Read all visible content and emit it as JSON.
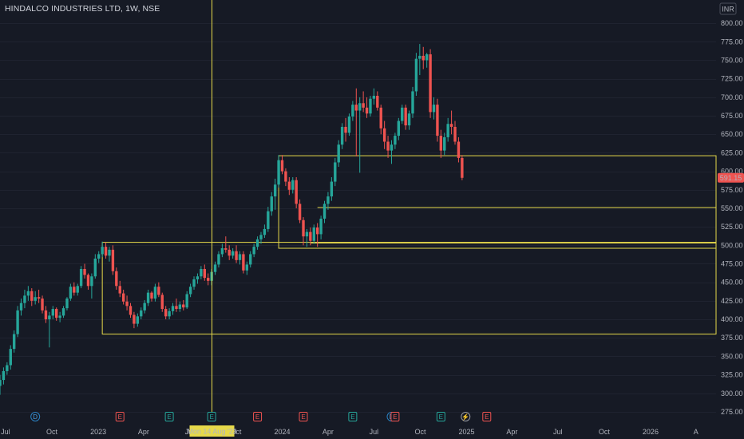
{
  "symbol": {
    "title": "HINDALCO INDUSTRIES LTD, 1W, NSE"
  },
  "currency": "INR",
  "crosshair": {
    "date_label": "Mon 14 Aug '23"
  },
  "last_price": {
    "label": "591.15",
    "value": 591.15
  },
  "colors": {
    "up": "#26a69a",
    "down": "#ef5350",
    "zone": "#e6d94a",
    "background": "#161a25",
    "grid": "#1f2330",
    "crosshair": "#e6d94a"
  },
  "chart_data": {
    "type": "candlestick",
    "title": "HINDALCO INDUSTRIES LTD, 1W, NSE",
    "y_axis": {
      "ticks": [
        275,
        300,
        325,
        350,
        375,
        400,
        425,
        450,
        475,
        500,
        525,
        550,
        575,
        600,
        625,
        650,
        675,
        700,
        725,
        750,
        775,
        800
      ],
      "range": [
        262,
        812
      ]
    },
    "x_axis": {
      "labels": [
        "Jul",
        "Oct",
        "2023",
        "Apr",
        "Jul",
        "Oct",
        "2024",
        "Apr",
        "Jul",
        "Oct",
        "2025",
        "Apr",
        "Jul",
        "Oct",
        "2026",
        "A"
      ],
      "range": [
        "2022-06-20",
        "2026-05-11"
      ]
    },
    "candles": [
      {
        "t": "2022-06-20",
        "o": 310,
        "h": 325,
        "l": 298,
        "c": 318
      },
      {
        "t": "2022-06-27",
        "o": 318,
        "h": 335,
        "l": 312,
        "c": 330
      },
      {
        "t": "2022-07-04",
        "o": 330,
        "h": 342,
        "l": 325,
        "c": 338
      },
      {
        "t": "2022-07-11",
        "o": 338,
        "h": 365,
        "l": 332,
        "c": 360
      },
      {
        "t": "2022-07-18",
        "o": 360,
        "h": 385,
        "l": 355,
        "c": 380
      },
      {
        "t": "2022-07-25",
        "o": 380,
        "h": 418,
        "l": 376,
        "c": 412
      },
      {
        "t": "2022-08-01",
        "o": 412,
        "h": 428,
        "l": 405,
        "c": 422
      },
      {
        "t": "2022-08-08",
        "o": 422,
        "h": 440,
        "l": 415,
        "c": 432
      },
      {
        "t": "2022-08-15",
        "o": 432,
        "h": 445,
        "l": 425,
        "c": 438
      },
      {
        "t": "2022-08-22",
        "o": 438,
        "h": 442,
        "l": 418,
        "c": 425
      },
      {
        "t": "2022-08-29",
        "o": 425,
        "h": 438,
        "l": 420,
        "c": 430
      },
      {
        "t": "2022-09-05",
        "o": 430,
        "h": 440,
        "l": 422,
        "c": 428
      },
      {
        "t": "2022-09-12",
        "o": 428,
        "h": 432,
        "l": 408,
        "c": 412
      },
      {
        "t": "2022-09-19",
        "o": 412,
        "h": 418,
        "l": 395,
        "c": 400
      },
      {
        "t": "2022-09-26",
        "o": 400,
        "h": 410,
        "l": 362,
        "c": 405
      },
      {
        "t": "2022-10-03",
        "o": 405,
        "h": 418,
        "l": 400,
        "c": 414
      },
      {
        "t": "2022-10-10",
        "o": 414,
        "h": 416,
        "l": 398,
        "c": 402
      },
      {
        "t": "2022-10-17",
        "o": 402,
        "h": 410,
        "l": 396,
        "c": 405
      },
      {
        "t": "2022-10-24",
        "o": 405,
        "h": 418,
        "l": 402,
        "c": 415
      },
      {
        "t": "2022-10-31",
        "o": 415,
        "h": 430,
        "l": 412,
        "c": 428
      },
      {
        "t": "2022-11-07",
        "o": 428,
        "h": 448,
        "l": 425,
        "c": 444
      },
      {
        "t": "2022-11-14",
        "o": 444,
        "h": 450,
        "l": 432,
        "c": 436
      },
      {
        "t": "2022-11-21",
        "o": 436,
        "h": 448,
        "l": 432,
        "c": 445
      },
      {
        "t": "2022-11-28",
        "o": 445,
        "h": 472,
        "l": 442,
        "c": 468
      },
      {
        "t": "2022-12-05",
        "o": 468,
        "h": 475,
        "l": 455,
        "c": 460
      },
      {
        "t": "2022-12-12",
        "o": 460,
        "h": 462,
        "l": 440,
        "c": 445
      },
      {
        "t": "2022-12-19",
        "o": 445,
        "h": 462,
        "l": 428,
        "c": 458
      },
      {
        "t": "2022-12-26",
        "o": 458,
        "h": 488,
        "l": 455,
        "c": 482
      },
      {
        "t": "2023-01-02",
        "o": 482,
        "h": 492,
        "l": 476,
        "c": 488
      },
      {
        "t": "2023-01-09",
        "o": 488,
        "h": 505,
        "l": 484,
        "c": 498
      },
      {
        "t": "2023-01-16",
        "o": 498,
        "h": 504,
        "l": 482,
        "c": 486
      },
      {
        "t": "2023-01-23",
        "o": 486,
        "h": 498,
        "l": 478,
        "c": 494
      },
      {
        "t": "2023-01-30",
        "o": 494,
        "h": 500,
        "l": 460,
        "c": 465
      },
      {
        "t": "2023-02-06",
        "o": 465,
        "h": 470,
        "l": 440,
        "c": 445
      },
      {
        "t": "2023-02-13",
        "o": 445,
        "h": 452,
        "l": 430,
        "c": 435
      },
      {
        "t": "2023-02-20",
        "o": 435,
        "h": 440,
        "l": 420,
        "c": 424
      },
      {
        "t": "2023-02-27",
        "o": 424,
        "h": 432,
        "l": 412,
        "c": 418
      },
      {
        "t": "2023-03-06",
        "o": 418,
        "h": 422,
        "l": 402,
        "c": 406
      },
      {
        "t": "2023-03-13",
        "o": 406,
        "h": 410,
        "l": 388,
        "c": 394
      },
      {
        "t": "2023-03-20",
        "o": 394,
        "h": 408,
        "l": 390,
        "c": 404
      },
      {
        "t": "2023-03-27",
        "o": 404,
        "h": 416,
        "l": 400,
        "c": 412
      },
      {
        "t": "2023-04-03",
        "o": 412,
        "h": 426,
        "l": 408,
        "c": 422
      },
      {
        "t": "2023-04-10",
        "o": 422,
        "h": 440,
        "l": 418,
        "c": 436
      },
      {
        "t": "2023-04-17",
        "o": 436,
        "h": 438,
        "l": 424,
        "c": 428
      },
      {
        "t": "2023-04-24",
        "o": 428,
        "h": 448,
        "l": 424,
        "c": 444
      },
      {
        "t": "2023-05-01",
        "o": 444,
        "h": 450,
        "l": 430,
        "c": 433
      },
      {
        "t": "2023-05-08",
        "o": 433,
        "h": 436,
        "l": 410,
        "c": 414
      },
      {
        "t": "2023-05-15",
        "o": 414,
        "h": 418,
        "l": 400,
        "c": 404
      },
      {
        "t": "2023-05-22",
        "o": 404,
        "h": 415,
        "l": 400,
        "c": 411
      },
      {
        "t": "2023-05-29",
        "o": 411,
        "h": 422,
        "l": 406,
        "c": 418
      },
      {
        "t": "2023-06-05",
        "o": 418,
        "h": 428,
        "l": 410,
        "c": 414
      },
      {
        "t": "2023-06-12",
        "o": 414,
        "h": 424,
        "l": 410,
        "c": 420
      },
      {
        "t": "2023-06-19",
        "o": 420,
        "h": 426,
        "l": 412,
        "c": 416
      },
      {
        "t": "2023-06-26",
        "o": 416,
        "h": 438,
        "l": 414,
        "c": 434
      },
      {
        "t": "2023-07-03",
        "o": 434,
        "h": 448,
        "l": 430,
        "c": 444
      },
      {
        "t": "2023-07-10",
        "o": 444,
        "h": 458,
        "l": 440,
        "c": 454
      },
      {
        "t": "2023-07-17",
        "o": 454,
        "h": 462,
        "l": 448,
        "c": 458
      },
      {
        "t": "2023-07-24",
        "o": 458,
        "h": 472,
        "l": 454,
        "c": 468
      },
      {
        "t": "2023-07-31",
        "o": 468,
        "h": 474,
        "l": 452,
        "c": 456
      },
      {
        "t": "2023-08-07",
        "o": 456,
        "h": 462,
        "l": 446,
        "c": 452
      },
      {
        "t": "2023-08-14",
        "o": 452,
        "h": 468,
        "l": 446,
        "c": 464
      },
      {
        "t": "2023-08-21",
        "o": 464,
        "h": 478,
        "l": 460,
        "c": 474
      },
      {
        "t": "2023-08-28",
        "o": 474,
        "h": 492,
        "l": 470,
        "c": 488
      },
      {
        "t": "2023-09-04",
        "o": 488,
        "h": 502,
        "l": 484,
        "c": 496
      },
      {
        "t": "2023-09-11",
        "o": 496,
        "h": 512,
        "l": 490,
        "c": 494
      },
      {
        "t": "2023-09-18",
        "o": 494,
        "h": 500,
        "l": 480,
        "c": 486
      },
      {
        "t": "2023-09-25",
        "o": 486,
        "h": 496,
        "l": 482,
        "c": 492
      },
      {
        "t": "2023-10-02",
        "o": 492,
        "h": 500,
        "l": 476,
        "c": 480
      },
      {
        "t": "2023-10-09",
        "o": 480,
        "h": 492,
        "l": 474,
        "c": 488
      },
      {
        "t": "2023-10-16",
        "o": 488,
        "h": 492,
        "l": 462,
        "c": 466
      },
      {
        "t": "2023-10-23",
        "o": 466,
        "h": 478,
        "l": 460,
        "c": 474
      },
      {
        "t": "2023-10-30",
        "o": 474,
        "h": 492,
        "l": 470,
        "c": 488
      },
      {
        "t": "2023-11-06",
        "o": 488,
        "h": 502,
        "l": 484,
        "c": 498
      },
      {
        "t": "2023-11-13",
        "o": 498,
        "h": 512,
        "l": 494,
        "c": 508
      },
      {
        "t": "2023-11-20",
        "o": 508,
        "h": 518,
        "l": 502,
        "c": 514
      },
      {
        "t": "2023-11-27",
        "o": 514,
        "h": 528,
        "l": 510,
        "c": 522
      },
      {
        "t": "2023-12-04",
        "o": 522,
        "h": 552,
        "l": 518,
        "c": 546
      },
      {
        "t": "2023-12-11",
        "o": 546,
        "h": 572,
        "l": 540,
        "c": 566
      },
      {
        "t": "2023-12-18",
        "o": 566,
        "h": 590,
        "l": 548,
        "c": 582
      },
      {
        "t": "2023-12-25",
        "o": 582,
        "h": 622,
        "l": 578,
        "c": 615
      },
      {
        "t": "2024-01-01",
        "o": 615,
        "h": 622,
        "l": 596,
        "c": 600
      },
      {
        "t": "2024-01-08",
        "o": 600,
        "h": 604,
        "l": 580,
        "c": 586
      },
      {
        "t": "2024-01-15",
        "o": 586,
        "h": 592,
        "l": 568,
        "c": 575
      },
      {
        "t": "2024-01-22",
        "o": 575,
        "h": 592,
        "l": 570,
        "c": 588
      },
      {
        "t": "2024-01-29",
        "o": 588,
        "h": 592,
        "l": 550,
        "c": 556
      },
      {
        "t": "2024-02-05",
        "o": 556,
        "h": 562,
        "l": 530,
        "c": 534
      },
      {
        "t": "2024-02-12",
        "o": 534,
        "h": 538,
        "l": 500,
        "c": 512
      },
      {
        "t": "2024-02-19",
        "o": 512,
        "h": 522,
        "l": 498,
        "c": 518
      },
      {
        "t": "2024-02-26",
        "o": 518,
        "h": 524,
        "l": 500,
        "c": 506
      },
      {
        "t": "2024-03-04",
        "o": 506,
        "h": 528,
        "l": 502,
        "c": 524
      },
      {
        "t": "2024-03-11",
        "o": 524,
        "h": 530,
        "l": 498,
        "c": 515
      },
      {
        "t": "2024-03-18",
        "o": 515,
        "h": 540,
        "l": 508,
        "c": 536
      },
      {
        "t": "2024-03-25",
        "o": 536,
        "h": 560,
        "l": 530,
        "c": 556
      },
      {
        "t": "2024-04-01",
        "o": 556,
        "h": 572,
        "l": 548,
        "c": 566
      },
      {
        "t": "2024-04-08",
        "o": 566,
        "h": 592,
        "l": 560,
        "c": 586
      },
      {
        "t": "2024-04-15",
        "o": 586,
        "h": 618,
        "l": 580,
        "c": 612
      },
      {
        "t": "2024-04-22",
        "o": 612,
        "h": 642,
        "l": 606,
        "c": 636
      },
      {
        "t": "2024-04-29",
        "o": 636,
        "h": 665,
        "l": 630,
        "c": 660
      },
      {
        "t": "2024-05-06",
        "o": 660,
        "h": 672,
        "l": 640,
        "c": 652
      },
      {
        "t": "2024-05-13",
        "o": 652,
        "h": 678,
        "l": 648,
        "c": 674
      },
      {
        "t": "2024-05-20",
        "o": 674,
        "h": 695,
        "l": 668,
        "c": 690
      },
      {
        "t": "2024-05-27",
        "o": 690,
        "h": 712,
        "l": 620,
        "c": 682
      },
      {
        "t": "2024-06-03",
        "o": 682,
        "h": 700,
        "l": 598,
        "c": 692
      },
      {
        "t": "2024-06-10",
        "o": 692,
        "h": 708,
        "l": 680,
        "c": 686
      },
      {
        "t": "2024-06-17",
        "o": 686,
        "h": 700,
        "l": 672,
        "c": 678
      },
      {
        "t": "2024-06-24",
        "o": 678,
        "h": 702,
        "l": 674,
        "c": 698
      },
      {
        "t": "2024-07-01",
        "o": 698,
        "h": 712,
        "l": 690,
        "c": 702
      },
      {
        "t": "2024-07-08",
        "o": 702,
        "h": 708,
        "l": 682,
        "c": 686
      },
      {
        "t": "2024-07-15",
        "o": 686,
        "h": 690,
        "l": 650,
        "c": 658
      },
      {
        "t": "2024-07-22",
        "o": 658,
        "h": 668,
        "l": 630,
        "c": 640
      },
      {
        "t": "2024-07-29",
        "o": 640,
        "h": 648,
        "l": 618,
        "c": 628
      },
      {
        "t": "2024-08-05",
        "o": 628,
        "h": 642,
        "l": 610,
        "c": 636
      },
      {
        "t": "2024-08-12",
        "o": 636,
        "h": 652,
        "l": 630,
        "c": 648
      },
      {
        "t": "2024-08-19",
        "o": 648,
        "h": 672,
        "l": 642,
        "c": 668
      },
      {
        "t": "2024-08-26",
        "o": 668,
        "h": 690,
        "l": 664,
        "c": 686
      },
      {
        "t": "2024-09-02",
        "o": 686,
        "h": 690,
        "l": 656,
        "c": 662
      },
      {
        "t": "2024-09-09",
        "o": 662,
        "h": 682,
        "l": 656,
        "c": 678
      },
      {
        "t": "2024-09-16",
        "o": 678,
        "h": 714,
        "l": 672,
        "c": 708
      },
      {
        "t": "2024-09-23",
        "o": 708,
        "h": 760,
        "l": 702,
        "c": 752
      },
      {
        "t": "2024-09-30",
        "o": 752,
        "h": 772,
        "l": 730,
        "c": 756
      },
      {
        "t": "2024-10-07",
        "o": 756,
        "h": 768,
        "l": 738,
        "c": 750
      },
      {
        "t": "2024-10-14",
        "o": 750,
        "h": 760,
        "l": 740,
        "c": 758
      },
      {
        "t": "2024-10-21",
        "o": 758,
        "h": 765,
        "l": 672,
        "c": 680
      },
      {
        "t": "2024-10-28",
        "o": 680,
        "h": 700,
        "l": 670,
        "c": 690
      },
      {
        "t": "2024-11-04",
        "o": 690,
        "h": 698,
        "l": 640,
        "c": 648
      },
      {
        "t": "2024-11-11",
        "o": 648,
        "h": 656,
        "l": 618,
        "c": 628
      },
      {
        "t": "2024-11-18",
        "o": 628,
        "h": 652,
        "l": 622,
        "c": 646
      },
      {
        "t": "2024-11-25",
        "o": 646,
        "h": 672,
        "l": 640,
        "c": 664
      },
      {
        "t": "2024-12-02",
        "o": 664,
        "h": 682,
        "l": 650,
        "c": 660
      },
      {
        "t": "2024-12-09",
        "o": 660,
        "h": 668,
        "l": 636,
        "c": 640
      },
      {
        "t": "2024-12-16",
        "o": 640,
        "h": 646,
        "l": 612,
        "c": 618
      },
      {
        "t": "2024-12-23",
        "o": 618,
        "h": 622,
        "l": 588,
        "c": 591.15
      }
    ],
    "zones": [
      {
        "from": "2023-01-09",
        "to": "extend",
        "top": 504,
        "bottom": 380
      },
      {
        "from": "2023-12-25",
        "to": "extend",
        "top": 621,
        "bottom": 496
      },
      {
        "from": "2024-03-11",
        "to": "extend",
        "top": 551,
        "bottom": 551
      },
      {
        "from": "2024-02-26",
        "to": "extend",
        "top": 503,
        "bottom": 503
      }
    ],
    "crosshair_x": "2023-08-14",
    "events": [
      {
        "t": "2022-08-29",
        "label": "D",
        "kind": "dividend"
      },
      {
        "t": "2023-02-13",
        "label": "E",
        "kind": "earnings-red"
      },
      {
        "t": "2023-05-22",
        "label": "E",
        "kind": "earnings-green"
      },
      {
        "t": "2023-08-14",
        "label": "E",
        "kind": "earnings-green"
      },
      {
        "t": "2023-11-13",
        "label": "E",
        "kind": "earnings-red"
      },
      {
        "t": "2024-02-12",
        "label": "E",
        "kind": "earnings-red"
      },
      {
        "t": "2024-05-20",
        "label": "E",
        "kind": "earnings-green"
      },
      {
        "t": "2024-08-05",
        "label": "D",
        "kind": "dividend"
      },
      {
        "t": "2024-08-12",
        "label": "E",
        "kind": "earnings-red"
      },
      {
        "t": "2024-11-11",
        "label": "E",
        "kind": "earnings-green"
      },
      {
        "t": "2024-12-30",
        "label": "⚡",
        "kind": "split"
      },
      {
        "t": "2025-02-10",
        "label": "E",
        "kind": "earnings-red"
      }
    ]
  }
}
